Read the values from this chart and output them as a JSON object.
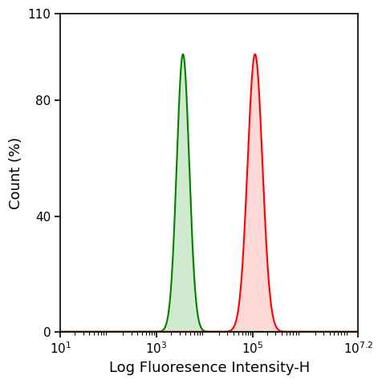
{
  "title": "",
  "xlabel": "Log Fluoresence Intensity-H",
  "ylabel": "Count (%)",
  "xmin": 1,
  "xmax": 7.2,
  "ymin": 0,
  "ymax": 110,
  "yticks": [
    0,
    40,
    80,
    110
  ],
  "ytick_labels": [
    "0",
    "40",
    "80",
    "110"
  ],
  "xtick_positions": [
    1,
    3,
    5,
    7.2
  ],
  "xtick_labels": [
    "$10^{1}$",
    "$10^{3}$",
    "$10^{5}$",
    "$10^{7.2}$"
  ],
  "green_peak_log": 3.55,
  "green_peak_height": 96,
  "green_sigma": 0.13,
  "red_peak_log": 5.05,
  "red_peak_height": 96,
  "red_sigma": 0.155,
  "green_color": "#008000",
  "green_fill": "#d0ead0",
  "red_color": "#ff0000",
  "red_fill": "#ffd8d8",
  "bg_color": "#ffffff",
  "axis_linewidth": 1.2,
  "curve_linewidth": 1.5,
  "xlabel_fontsize": 13,
  "ylabel_fontsize": 13,
  "tick_fontsize": 11
}
